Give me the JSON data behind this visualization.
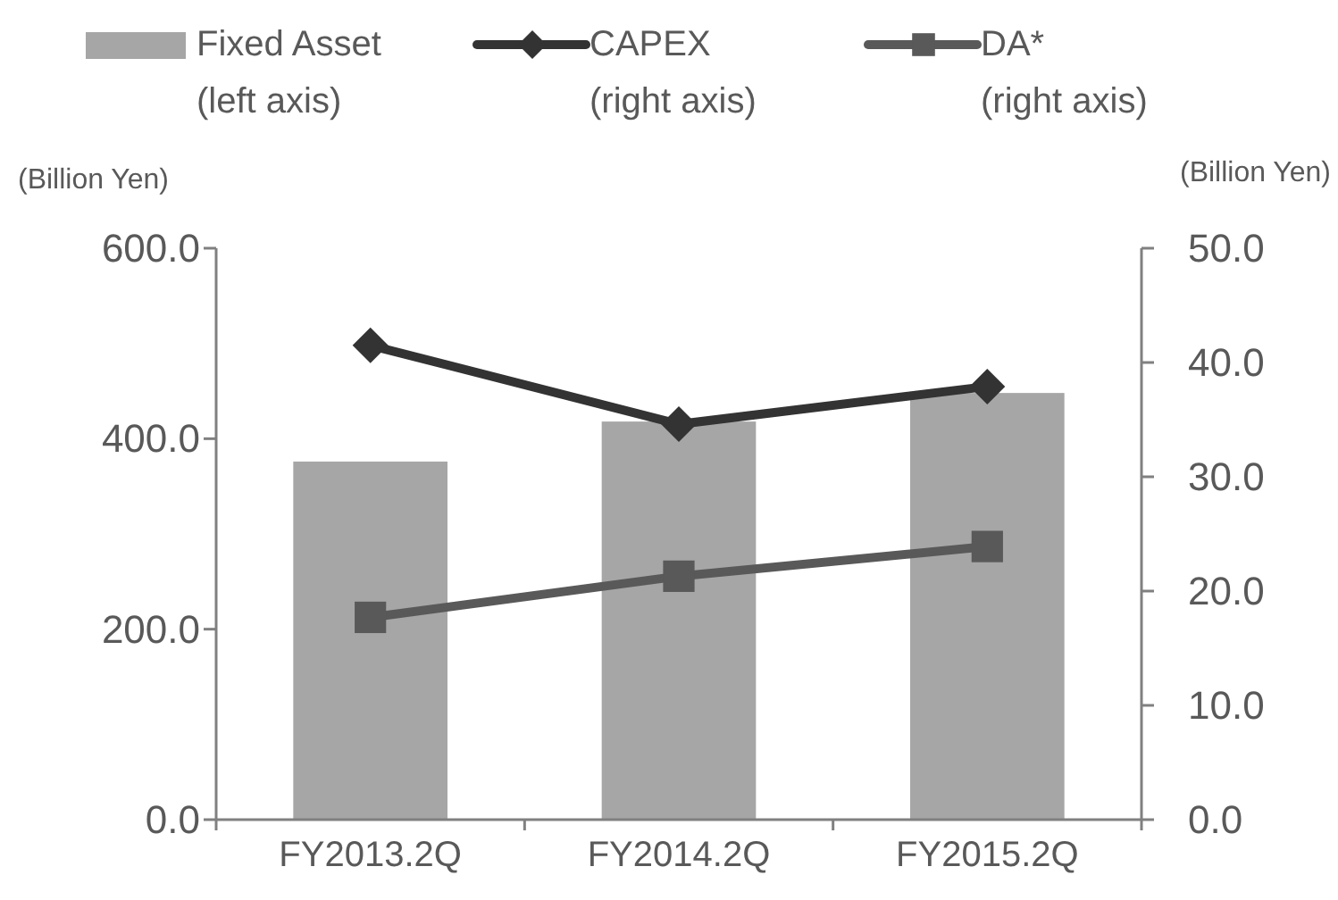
{
  "chart_data": {
    "type": "bar",
    "categories": [
      "FY2013.2Q",
      "FY2014.2Q",
      "FY2015.2Q"
    ],
    "series": [
      {
        "name": "Fixed Asset\n(left axis)",
        "color": "#a6a6a6",
        "values": [
          376,
          418,
          448
        ]
      },
      {
        "name": "CAPEX\n(right axis)",
        "type": "line",
        "axis": "y2",
        "marker": "diamond",
        "color": "#333333",
        "values": [
          41.5,
          34.6,
          37.9
        ]
      },
      {
        "name": "DA*\n(right axis)",
        "type": "line",
        "axis": "y2",
        "marker": "square",
        "color": "#595959",
        "values": [
          17.7,
          21.3,
          23.9
        ]
      }
    ],
    "ylabel": "(Billion Yen)",
    "y2label": "(Billion Yen)",
    "ylim": [
      0,
      600
    ],
    "yticks": [
      {
        "value": 0,
        "label": "0.0"
      },
      {
        "value": 200,
        "label": "200.0"
      },
      {
        "value": 400,
        "label": "400.0"
      },
      {
        "value": 600,
        "label": "600.0"
      }
    ],
    "y2lim": [
      0,
      50
    ],
    "y2ticks": [
      {
        "value": 0,
        "label": "0.0"
      },
      {
        "value": 10,
        "label": "10.0"
      },
      {
        "value": 20,
        "label": "20.0"
      },
      {
        "value": 30,
        "label": "30.0"
      },
      {
        "value": 40,
        "label": "40.0"
      },
      {
        "value": 50,
        "label": "50.0"
      }
    ],
    "legend": "top",
    "grid": false,
    "line_style": "solid"
  }
}
